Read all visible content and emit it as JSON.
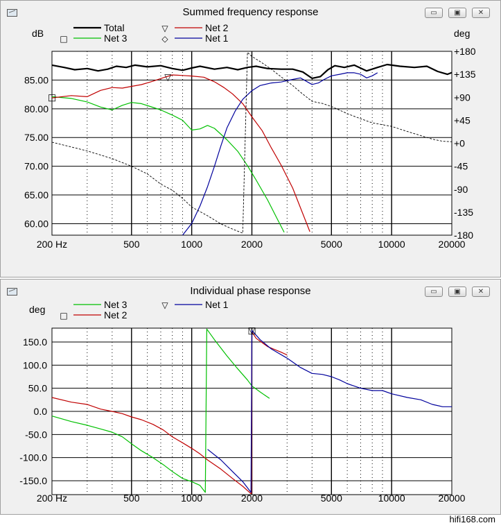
{
  "window1": {
    "title": "Summed frequency response",
    "buttons": {
      "minimize": "▭",
      "restore": "▣",
      "close": "✕"
    }
  },
  "window2": {
    "title": "Individual phase response",
    "buttons": {
      "minimize": "▭",
      "restore": "▣",
      "close": "✕"
    }
  },
  "watermark": "hifi168.com",
  "chart_data": [
    {
      "type": "line",
      "title": "Summed frequency response",
      "ylabel": "dB",
      "y2label": "deg",
      "xscale": "log",
      "xlim": [
        200,
        20000
      ],
      "ylim": [
        58,
        90
      ],
      "y2lim": [
        -180,
        180
      ],
      "xticks": [
        200,
        500,
        1000,
        2000,
        5000,
        10000,
        20000
      ],
      "xtick_labels": [
        "200 Hz",
        "500",
        "1000",
        "2000",
        "5000",
        "10000",
        "20000"
      ],
      "yticks": [
        60,
        65,
        70,
        75,
        80,
        85
      ],
      "ytick_labels": [
        "60.00",
        "65.00",
        "70.00",
        "75.00",
        "80.00",
        "85.00"
      ],
      "y2ticks": [
        180,
        135,
        90,
        45,
        0,
        -45,
        -90,
        -135,
        -180
      ],
      "y2tick_labels": [
        "+180",
        "+135",
        "+90",
        "+45",
        "+0",
        "-45",
        "-90",
        "-135",
        "-180"
      ],
      "grid": true,
      "legend": [
        {
          "name": "Total",
          "marker": "",
          "color": "#000000"
        },
        {
          "name": "Net 3",
          "marker": "□",
          "color": "#00c000"
        },
        {
          "name": "Net 2",
          "marker": "▽",
          "color": "#c00000"
        },
        {
          "name": "Net 1",
          "marker": "◇",
          "color": "#00009c"
        }
      ],
      "series": [
        {
          "name": "Total",
          "axis": "y",
          "color": "#000000",
          "width": 2.2,
          "points": [
            [
              200,
              87.6
            ],
            [
              230,
              87.2
            ],
            [
              260,
              86.8
            ],
            [
              300,
              87.0
            ],
            [
              340,
              86.6
            ],
            [
              380,
              86.9
            ],
            [
              420,
              87.4
            ],
            [
              470,
              87.2
            ],
            [
              520,
              87.6
            ],
            [
              600,
              87.3
            ],
            [
              700,
              87.5
            ],
            [
              800,
              87.0
            ],
            [
              900,
              86.7
            ],
            [
              1000,
              87.1
            ],
            [
              1100,
              87.4
            ],
            [
              1300,
              86.9
            ],
            [
              1500,
              87.2
            ],
            [
              1700,
              86.8
            ],
            [
              1900,
              87.2
            ],
            [
              2100,
              87.4
            ],
            [
              2400,
              87.0
            ],
            [
              2800,
              86.9
            ],
            [
              3200,
              86.9
            ],
            [
              3600,
              86.4
            ],
            [
              4000,
              85.3
            ],
            [
              4400,
              85.6
            ],
            [
              4800,
              86.8
            ],
            [
              5200,
              87.5
            ],
            [
              5800,
              87.2
            ],
            [
              6500,
              87.6
            ],
            [
              7500,
              86.6
            ],
            [
              8500,
              87.2
            ],
            [
              9500,
              87.7
            ],
            [
              11000,
              87.4
            ],
            [
              13000,
              87.2
            ],
            [
              15000,
              87.4
            ],
            [
              17000,
              86.5
            ],
            [
              19000,
              86.0
            ],
            [
              20000,
              86.3
            ]
          ]
        },
        {
          "name": "Net 3",
          "axis": "y",
          "color": "#00c000",
          "width": 1.2,
          "points": [
            [
              200,
              82.1
            ],
            [
              250,
              81.8
            ],
            [
              300,
              81.2
            ],
            [
              350,
              80.3
            ],
            [
              400,
              79.8
            ],
            [
              450,
              80.6
            ],
            [
              500,
              81.1
            ],
            [
              560,
              80.9
            ],
            [
              620,
              80.4
            ],
            [
              700,
              79.8
            ],
            [
              800,
              78.9
            ],
            [
              900,
              78.0
            ],
            [
              1000,
              76.3
            ],
            [
              1100,
              76.5
            ],
            [
              1200,
              77.1
            ],
            [
              1300,
              76.6
            ],
            [
              1500,
              74.6
            ],
            [
              1700,
              72.6
            ],
            [
              1900,
              70.1
            ],
            [
              2100,
              67.6
            ],
            [
              2400,
              64.1
            ],
            [
              2700,
              60.6
            ],
            [
              2900,
              58.5
            ]
          ]
        },
        {
          "name": "Net 2",
          "axis": "y",
          "color": "#c00000",
          "width": 1.2,
          "points": [
            [
              200,
              81.9
            ],
            [
              250,
              82.3
            ],
            [
              300,
              82.1
            ],
            [
              350,
              83.2
            ],
            [
              400,
              83.7
            ],
            [
              450,
              83.6
            ],
            [
              500,
              83.9
            ],
            [
              560,
              84.2
            ],
            [
              640,
              84.8
            ],
            [
              720,
              85.4
            ],
            [
              800,
              85.9
            ],
            [
              900,
              85.8
            ],
            [
              1000,
              85.7
            ],
            [
              1150,
              85.5
            ],
            [
              1300,
              84.7
            ],
            [
              1450,
              83.7
            ],
            [
              1600,
              82.6
            ],
            [
              1800,
              80.9
            ],
            [
              2000,
              78.6
            ],
            [
              2250,
              76.2
            ],
            [
              2500,
              73.2
            ],
            [
              2800,
              70.2
            ],
            [
              3200,
              66.2
            ],
            [
              3600,
              61.7
            ],
            [
              3900,
              58.6
            ]
          ]
        },
        {
          "name": "Net 1",
          "axis": "y2",
          "color": "#00009c",
          "width": 1.2,
          "points": [
            [
              900,
              -180
            ],
            [
              1000,
              -157
            ],
            [
              1100,
              -123
            ],
            [
              1200,
              -85
            ],
            [
              1300,
              -45
            ],
            [
              1400,
              -5
            ],
            [
              1500,
              30
            ],
            [
              1650,
              63
            ],
            [
              1800,
              86
            ],
            [
              2000,
              103
            ],
            [
              2200,
              113
            ],
            [
              2500,
              118
            ],
            [
              2800,
              120
            ],
            [
              3200,
              125
            ],
            [
              3500,
              128
            ],
            [
              3800,
              120
            ],
            [
              4000,
              115
            ],
            [
              4300,
              118
            ],
            [
              4600,
              125
            ],
            [
              5000,
              132
            ],
            [
              5500,
              135
            ],
            [
              6000,
              138
            ],
            [
              6500,
              138
            ],
            [
              7000,
              135
            ],
            [
              7500,
              128
            ],
            [
              8000,
              132
            ],
            [
              8500,
              138
            ]
          ]
        },
        {
          "name": "phase (dashed)",
          "axis": "y2",
          "color": "#000000",
          "width": 0.9,
          "dash": "3,2",
          "points": [
            [
              200,
              2
            ],
            [
              300,
              -15
            ],
            [
              400,
              -30
            ],
            [
              500,
              -45
            ],
            [
              600,
              -60
            ],
            [
              700,
              -80
            ],
            [
              800,
              -92
            ],
            [
              900,
              -108
            ],
            [
              1000,
              -125
            ],
            [
              1200,
              -142
            ],
            [
              1400,
              -158
            ],
            [
              1600,
              -168
            ],
            [
              1800,
              -176
            ],
            [
              1900,
              178
            ],
            [
              2000,
              170
            ],
            [
              2200,
              160
            ],
            [
              2500,
              145
            ],
            [
              2800,
              130
            ],
            [
              3200,
              113
            ],
            [
              3500,
              100
            ],
            [
              4000,
              82
            ],
            [
              4500,
              78
            ],
            [
              5000,
              72
            ],
            [
              6000,
              58
            ],
            [
              7000,
              48
            ],
            [
              8000,
              40
            ],
            [
              10000,
              33
            ],
            [
              12000,
              23
            ],
            [
              14000,
              15
            ],
            [
              16000,
              8
            ],
            [
              18000,
              4
            ],
            [
              20000,
              3
            ]
          ]
        }
      ],
      "markers": [
        {
          "series": "Net 3",
          "symbol": "□",
          "x": 200,
          "y": 82.1
        },
        {
          "series": "Net 2",
          "symbol": "▽",
          "x": 760,
          "y": 85.6
        }
      ]
    },
    {
      "type": "line",
      "title": "Individual phase response",
      "ylabel": "deg",
      "xscale": "log",
      "xlim": [
        200,
        20000
      ],
      "ylim": [
        -180,
        180
      ],
      "xticks": [
        200,
        500,
        1000,
        2000,
        5000,
        10000,
        20000
      ],
      "xtick_labels": [
        "200 Hz",
        "500",
        "1000",
        "2000",
        "5000",
        "10000",
        "20000"
      ],
      "yticks": [
        150,
        100,
        50,
        0,
        -50,
        -100,
        -150
      ],
      "ytick_labels": [
        "150.0",
        "100.0",
        "50.0",
        "0.0",
        "-50.0",
        "-100.0",
        "-150.0"
      ],
      "grid": true,
      "legend": [
        {
          "name": "Net 3",
          "marker": "",
          "color": "#00c000"
        },
        {
          "name": "Net 2",
          "marker": "□",
          "color": "#c00000"
        },
        {
          "name": "Net 1",
          "marker": "▽",
          "color": "#00009c"
        }
      ],
      "series": [
        {
          "name": "Net 3",
          "color": "#00c000",
          "width": 1.2,
          "points": [
            [
              200,
              -10
            ],
            [
              250,
              -22
            ],
            [
              300,
              -30
            ],
            [
              350,
              -38
            ],
            [
              400,
              -45
            ],
            [
              450,
              -55
            ],
            [
              500,
              -70
            ],
            [
              560,
              -85
            ],
            [
              640,
              -100
            ],
            [
              720,
              -115
            ],
            [
              800,
              -130
            ],
            [
              900,
              -145
            ],
            [
              1000,
              -152
            ],
            [
              1100,
              -160
            ],
            [
              1170,
              -175
            ],
            [
              1190,
              178
            ],
            [
              1300,
              155
            ],
            [
              1500,
              120
            ],
            [
              1700,
              92
            ],
            [
              1900,
              68
            ],
            [
              2000,
              55
            ],
            [
              2200,
              42
            ],
            [
              2450,
              28
            ]
          ]
        },
        {
          "name": "Net 2",
          "color": "#c00000",
          "width": 1.2,
          "points": [
            [
              200,
              30
            ],
            [
              250,
              20
            ],
            [
              300,
              15
            ],
            [
              350,
              5
            ],
            [
              400,
              0
            ],
            [
              450,
              -5
            ],
            [
              500,
              -12
            ],
            [
              560,
              -18
            ],
            [
              640,
              -28
            ],
            [
              720,
              -40
            ],
            [
              800,
              -55
            ],
            [
              900,
              -68
            ],
            [
              1000,
              -80
            ],
            [
              1100,
              -92
            ],
            [
              1200,
              -105
            ],
            [
              1400,
              -125
            ],
            [
              1600,
              -145
            ],
            [
              1800,
              -162
            ],
            [
              1980,
              -178
            ],
            [
              1990,
              -178
            ],
            [
              2000,
              172
            ],
            [
              2100,
              158
            ],
            [
              2400,
              140
            ],
            [
              2800,
              128
            ],
            [
              3000,
              122
            ]
          ]
        },
        {
          "name": "Net 1",
          "color": "#00009c",
          "width": 1.2,
          "points": [
            [
              1200,
              -82
            ],
            [
              1400,
              -105
            ],
            [
              1600,
              -130
            ],
            [
              1800,
              -152
            ],
            [
              1980,
              -175
            ],
            [
              2000,
              175
            ],
            [
              2200,
              155
            ],
            [
              2500,
              135
            ],
            [
              3000,
              115
            ],
            [
              3500,
              95
            ],
            [
              4000,
              82
            ],
            [
              4500,
              80
            ],
            [
              5000,
              75
            ],
            [
              5500,
              68
            ],
            [
              6000,
              60
            ],
            [
              7000,
              50
            ],
            [
              8000,
              45
            ],
            [
              9000,
              45
            ],
            [
              10000,
              38
            ],
            [
              12000,
              30
            ],
            [
              14000,
              25
            ],
            [
              16000,
              15
            ],
            [
              18000,
              10
            ],
            [
              20000,
              10
            ]
          ]
        }
      ],
      "markers": [
        {
          "series": "Net 2",
          "symbol": "□",
          "x": 2000,
          "y": 176
        },
        {
          "series": "Net 1",
          "symbol": "▽",
          "x": 2000,
          "y": 176
        }
      ]
    }
  ]
}
